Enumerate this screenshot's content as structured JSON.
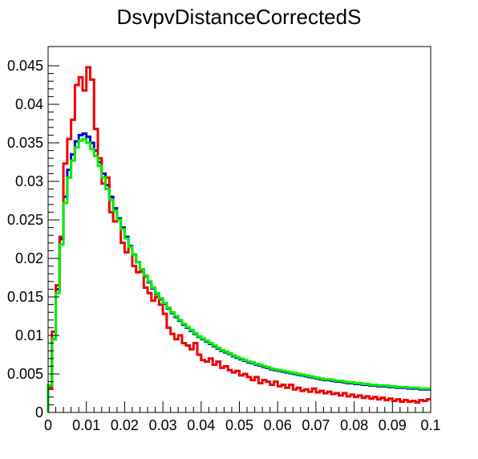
{
  "chart_data": {
    "type": "line",
    "title": "DsvpvDistanceCorrectedS",
    "xlabel": "",
    "ylabel": "",
    "xlim": [
      0,
      0.1
    ],
    "ylim": [
      0,
      0.0475
    ],
    "grid": false,
    "x_ticks": [
      "0",
      "0.01",
      "0.02",
      "0.03",
      "0.04",
      "0.05",
      "0.06",
      "0.07",
      "0.08",
      "0.09",
      "0.1"
    ],
    "y_ticks": [
      "0",
      "0.005",
      "0.01",
      "0.015",
      "0.02",
      "0.025",
      "0.03",
      "0.035",
      "0.04",
      "0.045"
    ],
    "bin_width": 0.001,
    "series": [
      {
        "color": "#0000cc",
        "values": [
          0.0035,
          0.0095,
          0.016,
          0.0225,
          0.028,
          0.0315,
          0.0335,
          0.0352,
          0.036,
          0.0362,
          0.0358,
          0.035,
          0.034,
          0.0325,
          0.031,
          0.0295,
          0.028,
          0.0265,
          0.0252,
          0.024,
          0.0228,
          0.0216,
          0.0205,
          0.0195,
          0.0186,
          0.0177,
          0.0169,
          0.0161,
          0.0154,
          0.0147,
          0.0141,
          0.0135,
          0.0129,
          0.0124,
          0.0119,
          0.0114,
          0.011,
          0.0106,
          0.0102,
          0.0098,
          0.0095,
          0.0092,
          0.0089,
          0.0086,
          0.0083,
          0.008,
          0.0078,
          0.0076,
          0.0073,
          0.0071,
          0.0069,
          0.0067,
          0.0065,
          0.0064,
          0.0062,
          0.0061,
          0.0059,
          0.0058,
          0.0056,
          0.0055,
          0.0054,
          0.0053,
          0.0052,
          0.0051,
          0.005,
          0.0049,
          0.0048,
          0.0047,
          0.0046,
          0.0045,
          0.0044,
          0.0043,
          0.0042,
          0.0042,
          0.0041,
          0.004,
          0.004,
          0.0039,
          0.0038,
          0.0038,
          0.0037,
          0.0037,
          0.0036,
          0.0036,
          0.0035,
          0.0035,
          0.0034,
          0.0034,
          0.0034,
          0.0033,
          0.0033,
          0.0032,
          0.0032,
          0.0032,
          0.0031,
          0.0031,
          0.0031,
          0.003,
          0.003,
          0.003
        ]
      },
      {
        "color": "#ee0000",
        "values": [
          0.0032,
          0.0105,
          0.0165,
          0.0228,
          0.0323,
          0.0355,
          0.038,
          0.0425,
          0.0435,
          0.0418,
          0.0448,
          0.0432,
          0.0368,
          0.033,
          0.0297,
          0.0305,
          0.026,
          0.0248,
          0.025,
          0.022,
          0.0208,
          0.0215,
          0.019,
          0.0182,
          0.0183,
          0.0162,
          0.0155,
          0.0145,
          0.015,
          0.014,
          0.0128,
          0.011,
          0.0102,
          0.0095,
          0.01,
          0.009,
          0.0087,
          0.0082,
          0.009,
          0.0075,
          0.0068,
          0.0066,
          0.007,
          0.0062,
          0.0066,
          0.0058,
          0.006,
          0.0055,
          0.0052,
          0.0054,
          0.0048,
          0.005,
          0.0046,
          0.0042,
          0.0046,
          0.0038,
          0.0042,
          0.004,
          0.0036,
          0.004,
          0.0034,
          0.0036,
          0.0032,
          0.0036,
          0.003,
          0.0032,
          0.0028,
          0.003,
          0.0027,
          0.0031,
          0.0026,
          0.0028,
          0.0025,
          0.0027,
          0.0024,
          0.0025,
          0.0022,
          0.0025,
          0.0021,
          0.0023,
          0.002,
          0.0022,
          0.0019,
          0.0021,
          0.0018,
          0.002,
          0.0017,
          0.0019,
          0.0016,
          0.0018,
          0.0015,
          0.0017,
          0.0014,
          0.0016,
          0.0014,
          0.0015,
          0.0013,
          0.0016,
          0.0015,
          0.0017
        ]
      },
      {
        "color": "#00ee00",
        "values": [
          0.0035,
          0.0095,
          0.0155,
          0.0218,
          0.0272,
          0.0305,
          0.0327,
          0.0344,
          0.0353,
          0.0355,
          0.035,
          0.0342,
          0.0333,
          0.032,
          0.0305,
          0.029,
          0.0276,
          0.0262,
          0.025,
          0.0238,
          0.0226,
          0.0215,
          0.0205,
          0.0195,
          0.0186,
          0.0178,
          0.017,
          0.0162,
          0.0155,
          0.0148,
          0.0142,
          0.0136,
          0.013,
          0.0125,
          0.012,
          0.0115,
          0.0111,
          0.0107,
          0.0103,
          0.0099,
          0.0096,
          0.0093,
          0.009,
          0.0087,
          0.0084,
          0.0081,
          0.0079,
          0.0077,
          0.0074,
          0.0072,
          0.007,
          0.0068,
          0.0066,
          0.0065,
          0.0063,
          0.0062,
          0.006,
          0.0059,
          0.0057,
          0.0056,
          0.0055,
          0.0054,
          0.0053,
          0.0052,
          0.0051,
          0.005,
          0.0049,
          0.0048,
          0.0047,
          0.0046,
          0.0045,
          0.0044,
          0.0043,
          0.0043,
          0.0042,
          0.0041,
          0.0041,
          0.004,
          0.0039,
          0.0039,
          0.0038,
          0.0038,
          0.0037,
          0.0037,
          0.0036,
          0.0036,
          0.0035,
          0.0035,
          0.0035,
          0.0034,
          0.0034,
          0.0033,
          0.0033,
          0.0033,
          0.0032,
          0.0032,
          0.0032,
          0.0031,
          0.0031,
          0.0031
        ]
      }
    ]
  }
}
